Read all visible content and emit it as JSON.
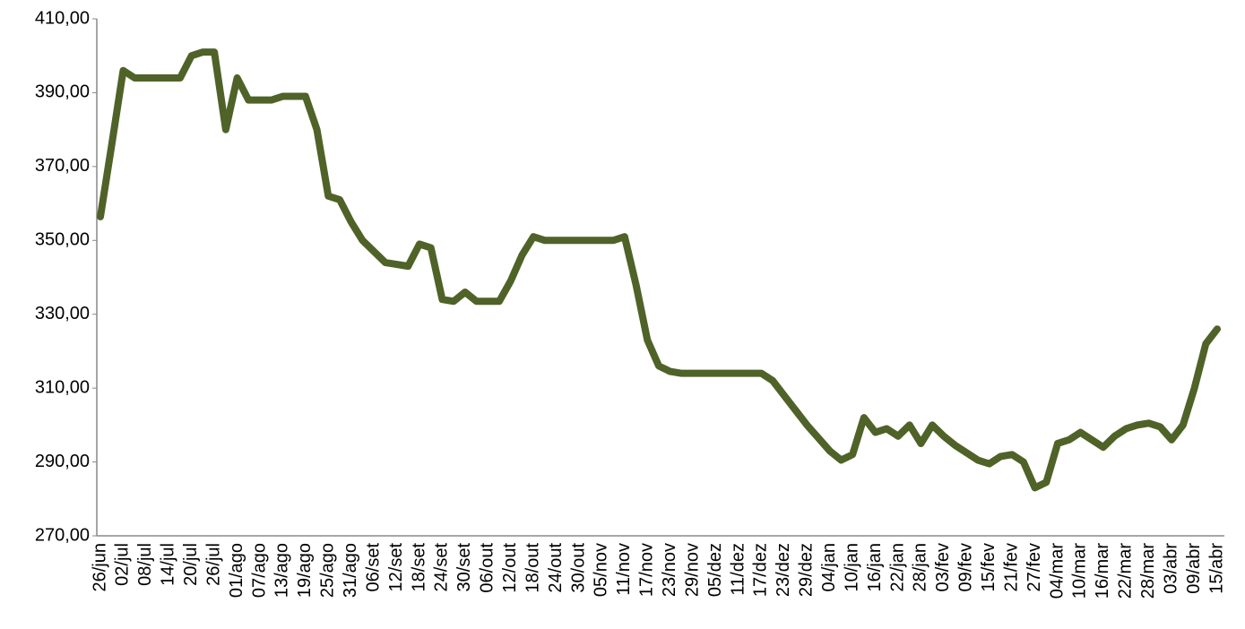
{
  "chart_data": {
    "type": "line",
    "categories": [
      "26/jun",
      null,
      "02/jul",
      null,
      "08/jul",
      null,
      "14/jul",
      null,
      "20/jul",
      null,
      "26/jul",
      null,
      "01/ago",
      null,
      "07/ago",
      null,
      "13/ago",
      null,
      "19/ago",
      null,
      "25/ago",
      null,
      "31/ago",
      null,
      "06/set",
      null,
      "12/set",
      null,
      "18/set",
      null,
      "24/set",
      null,
      "30/set",
      null,
      "06/out",
      null,
      "12/out",
      null,
      "18/out",
      null,
      "24/out",
      null,
      "30/out",
      null,
      "05/nov",
      null,
      "11/nov",
      null,
      "17/nov",
      null,
      "23/nov",
      null,
      "29/nov",
      null,
      "05/dez",
      null,
      "11/dez",
      null,
      "17/dez",
      null,
      "23/dez",
      null,
      "29/dez",
      null,
      "04/jan",
      null,
      "10/jan",
      null,
      "16/jan",
      null,
      "22/jan",
      null,
      "28/jan",
      null,
      "03/fev",
      null,
      "09/fev",
      null,
      "15/fev",
      null,
      "21/fev",
      null,
      "27/fev",
      null,
      "04/mar",
      null,
      "10/mar",
      null,
      "16/mar",
      null,
      "22/mar",
      null,
      "28/mar",
      null,
      "03/abr",
      null,
      "09/abr",
      null,
      "15/abr"
    ],
    "series": [
      {
        "color": "#4f6228",
        "values": [
          356.4,
          376,
          396,
          394,
          394,
          394,
          394,
          394,
          400,
          401,
          401,
          380,
          394,
          388,
          388,
          388,
          389,
          389,
          389,
          380,
          362,
          361,
          355,
          350,
          347,
          344,
          343.5,
          343,
          349,
          348,
          334,
          333.5,
          336,
          333.5,
          333.5,
          333.5,
          339,
          346,
          351,
          350,
          350,
          350,
          350,
          350,
          350,
          350,
          351,
          338,
          323,
          316,
          314.5,
          314,
          314,
          314,
          314,
          314,
          314,
          314,
          314,
          312,
          308,
          304,
          300,
          296.5,
          293,
          290.5,
          292,
          302,
          298,
          299,
          297,
          300,
          295,
          300,
          297,
          294.5,
          292.5,
          290.5,
          289.5,
          291.5,
          292,
          290,
          283,
          284.5,
          295,
          296,
          298,
          296,
          294,
          297,
          299,
          300,
          300.5,
          299.5,
          296,
          300,
          310,
          322,
          326
        ]
      }
    ],
    "ylim": [
      270,
      410
    ],
    "yticks": [
      {
        "value": 270,
        "label": "270,00"
      },
      {
        "value": 290,
        "label": "290,00"
      },
      {
        "value": 310,
        "label": "310,00"
      },
      {
        "value": 330,
        "label": "330,00"
      },
      {
        "value": 350,
        "label": "350,00"
      },
      {
        "value": 370,
        "label": "370,00"
      },
      {
        "value": 390,
        "label": "390,00"
      },
      {
        "value": 410,
        "label": "410,00"
      }
    ]
  }
}
